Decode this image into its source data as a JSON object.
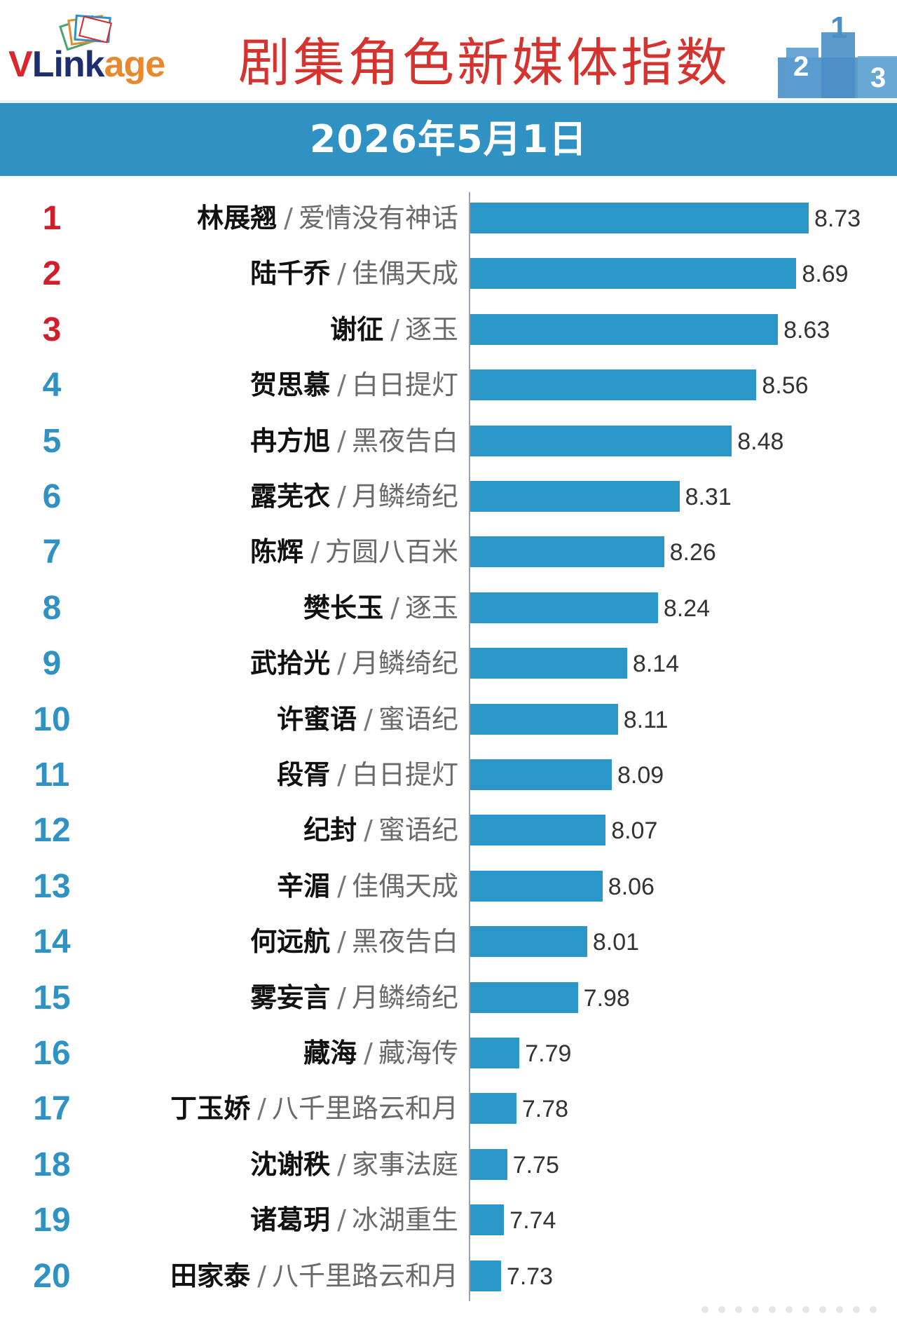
{
  "header": {
    "logo_brand": "VLinkage",
    "title": "剧集角色新媒体指数",
    "date": "2026年5月1日"
  },
  "chart_data": {
    "type": "bar",
    "orientation": "horizontal",
    "title": "剧集角色新媒体指数",
    "subtitle": "2026年5月1日",
    "ranks": [
      1,
      2,
      3,
      4,
      5,
      6,
      7,
      8,
      9,
      10,
      11,
      12,
      13,
      14,
      15,
      16,
      17,
      18,
      19,
      20
    ],
    "categories": [
      {
        "name": "林展翘",
        "drama": "爱情没有神话"
      },
      {
        "name": "陆千乔",
        "drama": "佳偶天成"
      },
      {
        "name": "谢征",
        "drama": "逐玉"
      },
      {
        "name": "贺思慕",
        "drama": "白日提灯"
      },
      {
        "name": "冉方旭",
        "drama": "黑夜告白"
      },
      {
        "name": "露芜衣",
        "drama": "月鳞绮纪"
      },
      {
        "name": "陈辉",
        "drama": "方圆八百米"
      },
      {
        "name": "樊长玉",
        "drama": "逐玉"
      },
      {
        "name": "武拾光",
        "drama": "月鳞绮纪"
      },
      {
        "name": "许蜜语",
        "drama": "蜜语纪"
      },
      {
        "name": "段胥",
        "drama": "白日提灯"
      },
      {
        "name": "纪封",
        "drama": "蜜语纪"
      },
      {
        "name": "辛湄",
        "drama": "佳偶天成"
      },
      {
        "name": "何远航",
        "drama": "黑夜告白"
      },
      {
        "name": "雾妄言",
        "drama": "月鳞绮纪"
      },
      {
        "name": "藏海",
        "drama": "藏海传"
      },
      {
        "name": "丁玉娇",
        "drama": "八千里路云和月"
      },
      {
        "name": "沈谢秩",
        "drama": "家事法庭"
      },
      {
        "name": "诸葛玥",
        "drama": "冰湖重生"
      },
      {
        "name": "田家泰",
        "drama": "八千里路云和月"
      }
    ],
    "values": [
      8.73,
      8.69,
      8.63,
      8.56,
      8.48,
      8.31,
      8.26,
      8.24,
      8.14,
      8.11,
      8.09,
      8.07,
      8.06,
      8.01,
      7.98,
      7.79,
      7.78,
      7.75,
      7.74,
      7.73
    ],
    "values_text": [
      "8.73",
      "8.69",
      "8.63",
      "8.56",
      "8.48",
      "8.31",
      "8.26",
      "8.24",
      "8.14",
      "8.11",
      "8.09",
      "8.07",
      "8.06",
      "8.01",
      "7.98",
      "7.79",
      "7.78",
      "7.75",
      "7.74",
      "7.73"
    ],
    "xlim": [
      7.63,
      8.73
    ],
    "separator": "/",
    "grid": false,
    "legend": "none",
    "colors": {
      "bar": "#2b97c9",
      "rank_top": "#d01f2b",
      "rank": "#2f92c2",
      "band": "#2f92c2",
      "title": "#d6332f"
    }
  }
}
